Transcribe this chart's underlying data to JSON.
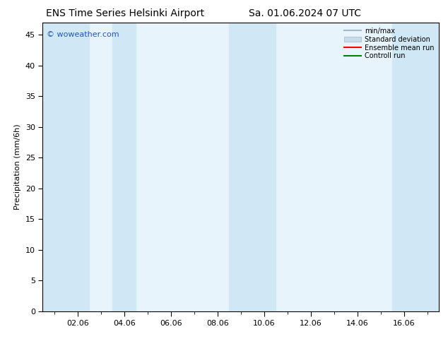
{
  "title_left": "ENS Time Series Helsinki Airport",
  "title_right": "Sa. 01.06.2024 07 UTC",
  "ylabel": "Precipitation (mm/6h)",
  "ylim": [
    0,
    47
  ],
  "yticks": [
    0,
    5,
    10,
    15,
    20,
    25,
    30,
    35,
    40,
    45
  ],
  "watermark": "© woweather.com",
  "legend_labels": [
    "min/max",
    "Standard deviation",
    "Ensemble mean run",
    "Controll run"
  ],
  "bg_color": "#ffffff",
  "plot_bg_color": "#e8f4fb",
  "x_tick_labels": [
    "02.06",
    "04.06",
    "06.06",
    "08.06",
    "10.06",
    "12.06",
    "14.06",
    "16.06"
  ],
  "x_tick_positions": [
    1,
    3,
    5,
    7,
    9,
    11,
    13,
    15
  ],
  "xlim": [
    -0.5,
    16.5
  ],
  "shaded_regions": [
    [
      -0.5,
      1.5
    ],
    [
      2.5,
      3.5
    ],
    [
      7.5,
      9.5
    ],
    [
      14.5,
      16.5
    ]
  ],
  "shade_color": "#d0e8f5",
  "minmax_color": "#a0b8c8",
  "stddev_color": "#c8dce8"
}
